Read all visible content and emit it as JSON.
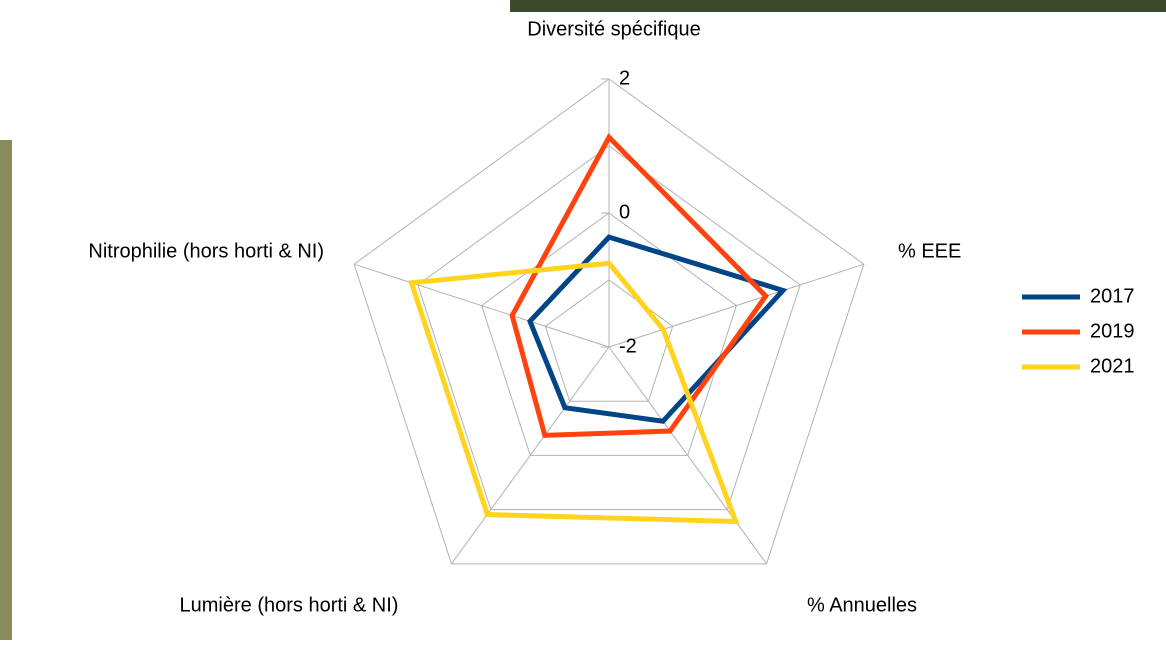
{
  "chart_data": {
    "type": "radar",
    "categories": [
      "Diversité spécifique",
      "% EEE",
      "% Annuelles",
      "Lumière (hors horti & NI)",
      "Nitrophilie (hors horti & NI)"
    ],
    "series": [
      {
        "name": "2017",
        "color": "#004586",
        "values": [
          -0.36,
          0.73,
          -0.63,
          -0.88,
          -0.76
        ]
      },
      {
        "name": "2019",
        "color": "#ff420e",
        "values": [
          1.13,
          0.46,
          -0.45,
          -0.37,
          -0.48
        ]
      },
      {
        "name": "2021",
        "color": "#ffd320",
        "values": [
          -0.75,
          -1.15,
          1.22,
          1.09,
          1.1
        ]
      }
    ],
    "ylim": [
      -2,
      2
    ],
    "yticks": [
      -2,
      0,
      2
    ],
    "minor_grid": [
      -1,
      1
    ],
    "grid": true,
    "legend": "right"
  }
}
